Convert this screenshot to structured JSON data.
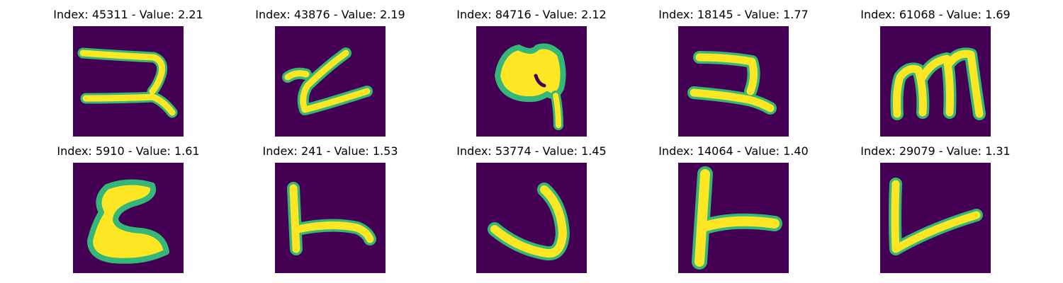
{
  "panels": [
    {
      "title": "Index: 45311 - Value: 2.21",
      "glyph": "hook-2"
    },
    {
      "title": "Index: 43876 - Value: 2.19",
      "glyph": "z-curve"
    },
    {
      "title": "Index: 84716 - Value: 2.12",
      "glyph": "blob-6"
    },
    {
      "title": "Index: 18145 - Value: 1.77",
      "glyph": "reverse-2"
    },
    {
      "title": "Index: 61068 - Value: 1.69",
      "glyph": "letter-m"
    },
    {
      "title": "Index: 5910 - Value: 1.61",
      "glyph": "blob-z"
    },
    {
      "title": "Index: 241 - Value: 1.53",
      "glyph": "side-t"
    },
    {
      "title": "Index: 53774 - Value: 1.45",
      "glyph": "letter-j"
    },
    {
      "title": "Index: 14064 - Value: 1.40",
      "glyph": "side-t-bold"
    },
    {
      "title": "Index: 29079 - Value: 1.31",
      "glyph": "letter-v"
    }
  ],
  "colors": {
    "background": "#440154",
    "stroke_core": "#fde725",
    "stroke_edge": "#35b779"
  }
}
